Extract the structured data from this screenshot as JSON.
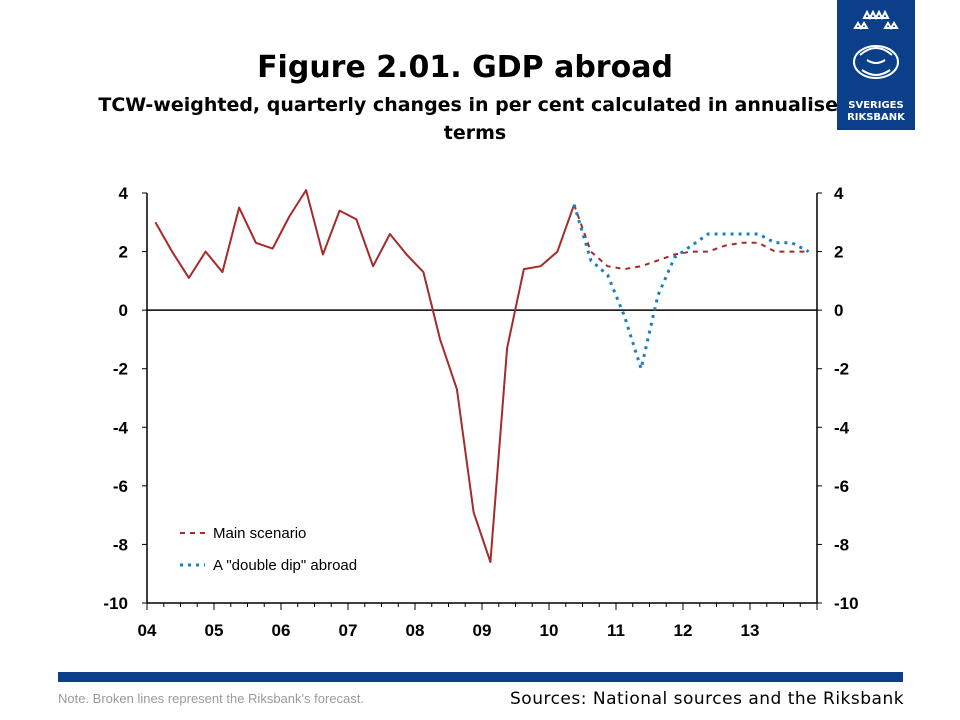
{
  "header": {
    "title": "Figure 2.01. GDP abroad",
    "subtitle": "TCW-weighted, quarterly changes in per cent calculated in annualised terms"
  },
  "logo": {
    "line1": "SVERIGES",
    "line2": "RIKSBANK",
    "icon": "crown-crest-icon"
  },
  "footer": {
    "note": "Note. Broken lines represent the Riksbank's forecast.",
    "sources": "Sources: National sources and the Riksbank"
  },
  "colors": {
    "brand": "#0b3f8a",
    "main": "#a52a2a",
    "double_dip": "#1a7fbf"
  },
  "chart_data": {
    "type": "line",
    "title": "Figure 2.01. GDP abroad",
    "subtitle": "TCW-weighted, quarterly changes in per cent calculated in annualised terms",
    "xlabel": "",
    "ylabel": "",
    "x_tick_labels": [
      "04",
      "05",
      "06",
      "07",
      "08",
      "09",
      "10",
      "11",
      "12",
      "13"
    ],
    "ylim": [
      -10,
      4
    ],
    "y_ticks": [
      4,
      2,
      0,
      -2,
      -4,
      -6,
      -8,
      -10
    ],
    "grid": false,
    "legend_position": "bottom-left",
    "series": [
      {
        "name": "",
        "style": "solid",
        "color": "#a52a2a",
        "x": [
          "2004Q1",
          "2004Q2",
          "2004Q3",
          "2004Q4",
          "2005Q1",
          "2005Q2",
          "2005Q3",
          "2005Q4",
          "2006Q1",
          "2006Q2",
          "2006Q3",
          "2006Q4",
          "2007Q1",
          "2007Q2",
          "2007Q3",
          "2007Q4",
          "2008Q1",
          "2008Q2",
          "2008Q3",
          "2008Q4",
          "2009Q1",
          "2009Q2",
          "2009Q3",
          "2009Q4",
          "2010Q1",
          "2010Q2"
        ],
        "values": [
          3.0,
          2.0,
          1.1,
          2.0,
          1.3,
          3.5,
          2.3,
          2.1,
          3.2,
          4.1,
          1.9,
          3.4,
          3.1,
          1.5,
          2.6,
          1.9,
          1.3,
          -1.0,
          -2.7,
          -6.9,
          -8.6,
          -1.3,
          1.4,
          1.5,
          2.0,
          3.6
        ]
      },
      {
        "name": "Main scenario",
        "style": "dashed",
        "color": "#a52a2a",
        "x": [
          "2010Q2",
          "2010Q3",
          "2010Q4",
          "2011Q1",
          "2011Q2",
          "2011Q3",
          "2011Q4",
          "2012Q1",
          "2012Q2",
          "2012Q3",
          "2012Q4",
          "2013Q1",
          "2013Q2",
          "2013Q3",
          "2013Q4"
        ],
        "values": [
          3.6,
          2.0,
          1.5,
          1.4,
          1.5,
          1.7,
          1.9,
          2.0,
          2.0,
          2.2,
          2.3,
          2.3,
          2.0,
          2.0,
          2.0
        ]
      },
      {
        "name": "A \"double dip\" abroad",
        "style": "dotted",
        "color": "#1a7fbf",
        "x": [
          "2010Q2",
          "2010Q3",
          "2010Q4",
          "2011Q1",
          "2011Q2",
          "2011Q3",
          "2011Q4",
          "2012Q1",
          "2012Q2",
          "2012Q3",
          "2012Q4",
          "2013Q1",
          "2013Q2",
          "2013Q3",
          "2013Q4"
        ],
        "values": [
          3.6,
          1.7,
          1.2,
          -0.2,
          -2.0,
          0.5,
          1.8,
          2.2,
          2.6,
          2.6,
          2.6,
          2.6,
          2.3,
          2.3,
          2.0
        ]
      }
    ]
  }
}
